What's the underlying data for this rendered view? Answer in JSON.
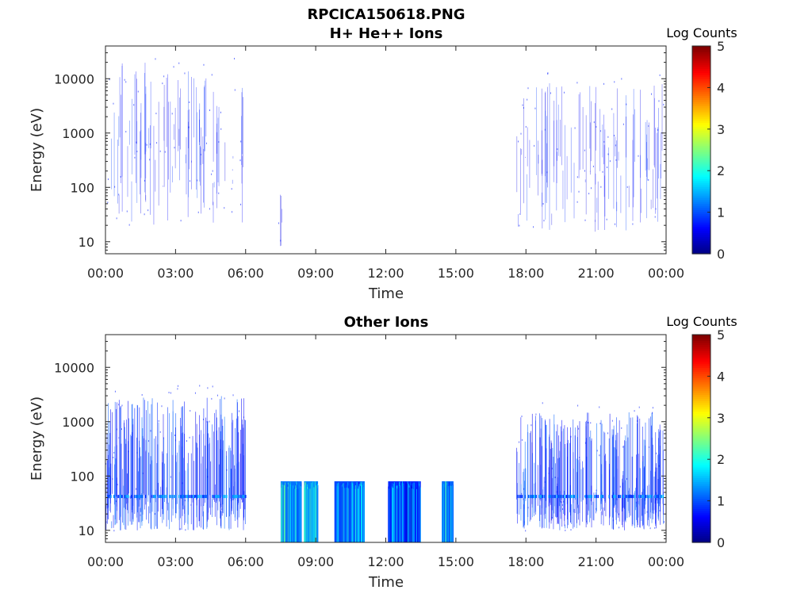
{
  "figure": {
    "title": "RPCICA150618.PNG"
  },
  "colors": {
    "colormap": [
      "#00007f",
      "#0000ff",
      "#007fff",
      "#00ffff",
      "#7fff7f",
      "#ffff00",
      "#ff7f00",
      "#ff0000",
      "#7f0000"
    ],
    "axis": "#262626"
  },
  "chart_data": [
    {
      "type": "heatmap",
      "title": "H+ He++ Ions",
      "xlabel": "Time",
      "ylabel": "Energy (eV)",
      "x_ticks": [
        "00:00",
        "03:00",
        "06:00",
        "09:00",
        "12:00",
        "15:00",
        "18:00",
        "21:00",
        "00:00"
      ],
      "xlim_hours": [
        0,
        24
      ],
      "y_scale": "log",
      "ylim": [
        6,
        40000
      ],
      "y_ticks": [
        10,
        100,
        1000,
        10000
      ],
      "y_tick_labels": [
        "10",
        "100",
        "1000",
        "10000"
      ],
      "colorbar": {
        "label": "Log Counts",
        "range": [
          0,
          5
        ],
        "ticks": [
          "0",
          "1",
          "2",
          "3",
          "4",
          "5"
        ]
      },
      "activity_intervals": [
        {
          "start_hour": 0.0,
          "end_hour": 6.0,
          "emin": 20,
          "emax": 20000,
          "level": 0.8,
          "density": "sparse"
        },
        {
          "start_hour": 7.4,
          "end_hour": 7.6,
          "emin": 8,
          "emax": 80,
          "level": 0.6,
          "density": "sparse"
        },
        {
          "start_hour": 17.6,
          "end_hour": 23.9,
          "emin": 15,
          "emax": 10000,
          "level": 0.8,
          "density": "sparse"
        }
      ]
    },
    {
      "type": "heatmap",
      "title": "Other Ions",
      "xlabel": "Time",
      "ylabel": "Energy (eV)",
      "x_ticks": [
        "00:00",
        "03:00",
        "06:00",
        "09:00",
        "12:00",
        "15:00",
        "18:00",
        "21:00",
        "00:00"
      ],
      "xlim_hours": [
        0,
        24
      ],
      "y_scale": "log",
      "ylim": [
        6,
        40000
      ],
      "y_ticks": [
        10,
        100,
        1000,
        10000
      ],
      "y_tick_labels": [
        "10",
        "100",
        "1000",
        "10000"
      ],
      "colorbar": {
        "label": "Log Counts",
        "range": [
          0,
          5
        ],
        "ticks": [
          "0",
          "1",
          "2",
          "3",
          "4",
          "5"
        ]
      },
      "activity_intervals": [
        {
          "start_hour": 0.0,
          "end_hour": 6.0,
          "emin": 10,
          "emax": 3000,
          "level": 1.0,
          "density": "dense"
        },
        {
          "start_hour": 7.5,
          "end_hour": 8.4,
          "emin": 6,
          "emax": 80,
          "level": 1.6,
          "density": "block"
        },
        {
          "start_hour": 8.5,
          "end_hour": 9.1,
          "emin": 6,
          "emax": 80,
          "level": 1.7,
          "density": "block"
        },
        {
          "start_hour": 9.8,
          "end_hour": 11.1,
          "emin": 6,
          "emax": 80,
          "level": 1.3,
          "density": "block"
        },
        {
          "start_hour": 12.1,
          "end_hour": 13.5,
          "emin": 6,
          "emax": 80,
          "level": 1.1,
          "density": "block"
        },
        {
          "start_hour": 14.4,
          "end_hour": 14.9,
          "emin": 6,
          "emax": 80,
          "level": 1.5,
          "density": "block"
        },
        {
          "start_hour": 17.6,
          "end_hour": 23.9,
          "emin": 10,
          "emax": 1500,
          "level": 1.0,
          "density": "dense"
        }
      ]
    }
  ]
}
